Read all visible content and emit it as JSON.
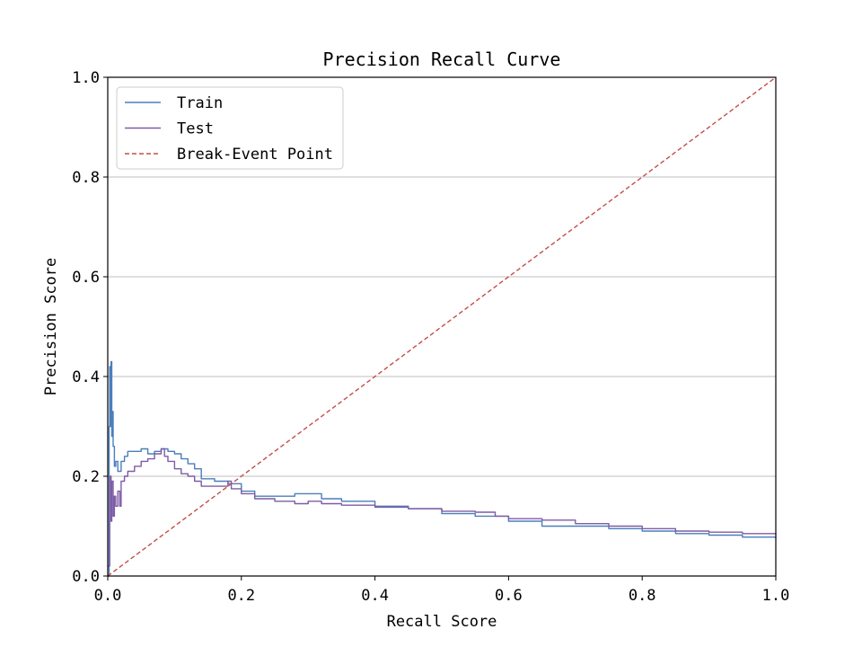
{
  "chart_data": {
    "type": "line",
    "title": "Precision Recall Curve",
    "xlabel": "Recall Score",
    "ylabel": "Precision Score",
    "xlim": [
      0.0,
      1.0
    ],
    "ylim": [
      0.0,
      1.0
    ],
    "xticks": [
      "0.0",
      "0.2",
      "0.4",
      "0.6",
      "0.8",
      "1.0"
    ],
    "yticks": [
      "0.0",
      "0.2",
      "0.4",
      "0.6",
      "0.8",
      "1.0"
    ],
    "grid": "horizontal",
    "legend_position": "top-left",
    "series": [
      {
        "name": "Train",
        "color": "#4a7fba",
        "style": "solid",
        "points": [
          [
            0.0,
            0.0
          ],
          [
            0.002,
            0.3
          ],
          [
            0.003,
            0.42
          ],
          [
            0.004,
            0.3
          ],
          [
            0.005,
            0.43
          ],
          [
            0.006,
            0.28
          ],
          [
            0.007,
            0.33
          ],
          [
            0.008,
            0.26
          ],
          [
            0.01,
            0.22
          ],
          [
            0.012,
            0.23
          ],
          [
            0.015,
            0.21
          ],
          [
            0.02,
            0.23
          ],
          [
            0.025,
            0.24
          ],
          [
            0.03,
            0.25
          ],
          [
            0.04,
            0.25
          ],
          [
            0.05,
            0.255
          ],
          [
            0.06,
            0.245
          ],
          [
            0.07,
            0.25
          ],
          [
            0.08,
            0.255
          ],
          [
            0.09,
            0.25
          ],
          [
            0.1,
            0.245
          ],
          [
            0.11,
            0.235
          ],
          [
            0.12,
            0.225
          ],
          [
            0.13,
            0.215
          ],
          [
            0.14,
            0.195
          ],
          [
            0.16,
            0.19
          ],
          [
            0.18,
            0.185
          ],
          [
            0.2,
            0.17
          ],
          [
            0.22,
            0.16
          ],
          [
            0.25,
            0.16
          ],
          [
            0.28,
            0.165
          ],
          [
            0.3,
            0.165
          ],
          [
            0.32,
            0.155
          ],
          [
            0.35,
            0.15
          ],
          [
            0.4,
            0.14
          ],
          [
            0.45,
            0.135
          ],
          [
            0.5,
            0.125
          ],
          [
            0.55,
            0.12
          ],
          [
            0.6,
            0.11
          ],
          [
            0.65,
            0.1
          ],
          [
            0.7,
            0.1
          ],
          [
            0.75,
            0.095
          ],
          [
            0.8,
            0.09
          ],
          [
            0.85,
            0.085
          ],
          [
            0.9,
            0.082
          ],
          [
            0.95,
            0.078
          ],
          [
            1.0,
            0.075
          ]
        ]
      },
      {
        "name": "Test",
        "color": "#7e5ca6",
        "style": "solid",
        "points": [
          [
            0.0,
            0.02
          ],
          [
            0.003,
            0.2
          ],
          [
            0.005,
            0.11
          ],
          [
            0.006,
            0.19
          ],
          [
            0.008,
            0.12
          ],
          [
            0.01,
            0.16
          ],
          [
            0.012,
            0.14
          ],
          [
            0.015,
            0.17
          ],
          [
            0.018,
            0.14
          ],
          [
            0.02,
            0.19
          ],
          [
            0.025,
            0.2
          ],
          [
            0.03,
            0.21
          ],
          [
            0.04,
            0.22
          ],
          [
            0.05,
            0.23
          ],
          [
            0.06,
            0.235
          ],
          [
            0.07,
            0.245
          ],
          [
            0.08,
            0.255
          ],
          [
            0.085,
            0.24
          ],
          [
            0.09,
            0.23
          ],
          [
            0.1,
            0.215
          ],
          [
            0.11,
            0.205
          ],
          [
            0.12,
            0.2
          ],
          [
            0.13,
            0.19
          ],
          [
            0.14,
            0.18
          ],
          [
            0.16,
            0.18
          ],
          [
            0.18,
            0.19
          ],
          [
            0.185,
            0.175
          ],
          [
            0.2,
            0.165
          ],
          [
            0.22,
            0.155
          ],
          [
            0.25,
            0.15
          ],
          [
            0.28,
            0.145
          ],
          [
            0.3,
            0.15
          ],
          [
            0.32,
            0.145
          ],
          [
            0.35,
            0.142
          ],
          [
            0.4,
            0.138
          ],
          [
            0.45,
            0.135
          ],
          [
            0.5,
            0.13
          ],
          [
            0.55,
            0.128
          ],
          [
            0.58,
            0.12
          ],
          [
            0.6,
            0.115
          ],
          [
            0.65,
            0.112
          ],
          [
            0.7,
            0.105
          ],
          [
            0.75,
            0.1
          ],
          [
            0.8,
            0.095
          ],
          [
            0.85,
            0.09
          ],
          [
            0.9,
            0.088
          ],
          [
            0.95,
            0.085
          ],
          [
            1.0,
            0.082
          ]
        ]
      },
      {
        "name": "Break-Event Point",
        "color": "#c44e48",
        "style": "dashed",
        "points": [
          [
            0.0,
            0.0
          ],
          [
            1.0,
            1.0
          ]
        ]
      }
    ]
  }
}
